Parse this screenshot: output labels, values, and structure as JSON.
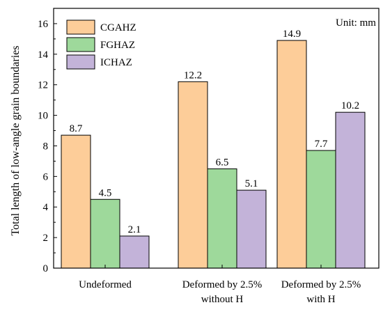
{
  "chart_data": {
    "type": "bar",
    "title": "",
    "xlabel": "",
    "ylabel": "Total length of low-angle grain boundaries",
    "unit_note": "Unit: mm",
    "ylim": [
      0,
      17
    ],
    "yticks": [
      0,
      2,
      4,
      6,
      8,
      10,
      12,
      14,
      16
    ],
    "categories": [
      [
        "Undeformed"
      ],
      [
        "Deformed by 2.5%",
        "without H"
      ],
      [
        "Deformed by 2.5%",
        "with H"
      ]
    ],
    "series": [
      {
        "name": "CGAHZ",
        "values": [
          8.7,
          12.2,
          14.9
        ],
        "labels": [
          "8.7",
          "12.2",
          "14.9"
        ],
        "color": "#FDCD99"
      },
      {
        "name": "FGHAZ",
        "values": [
          4.5,
          6.5,
          7.7
        ],
        "labels": [
          "4.5",
          "6.5",
          "7.7"
        ],
        "color": "#9ED99B"
      },
      {
        "name": "ICHAZ",
        "values": [
          2.1,
          5.1,
          10.2
        ],
        "labels": [
          "2.1",
          "5.1",
          "10.2"
        ],
        "color": "#C3B3D9"
      }
    ],
    "legend_position": "top-left",
    "grid": false
  }
}
